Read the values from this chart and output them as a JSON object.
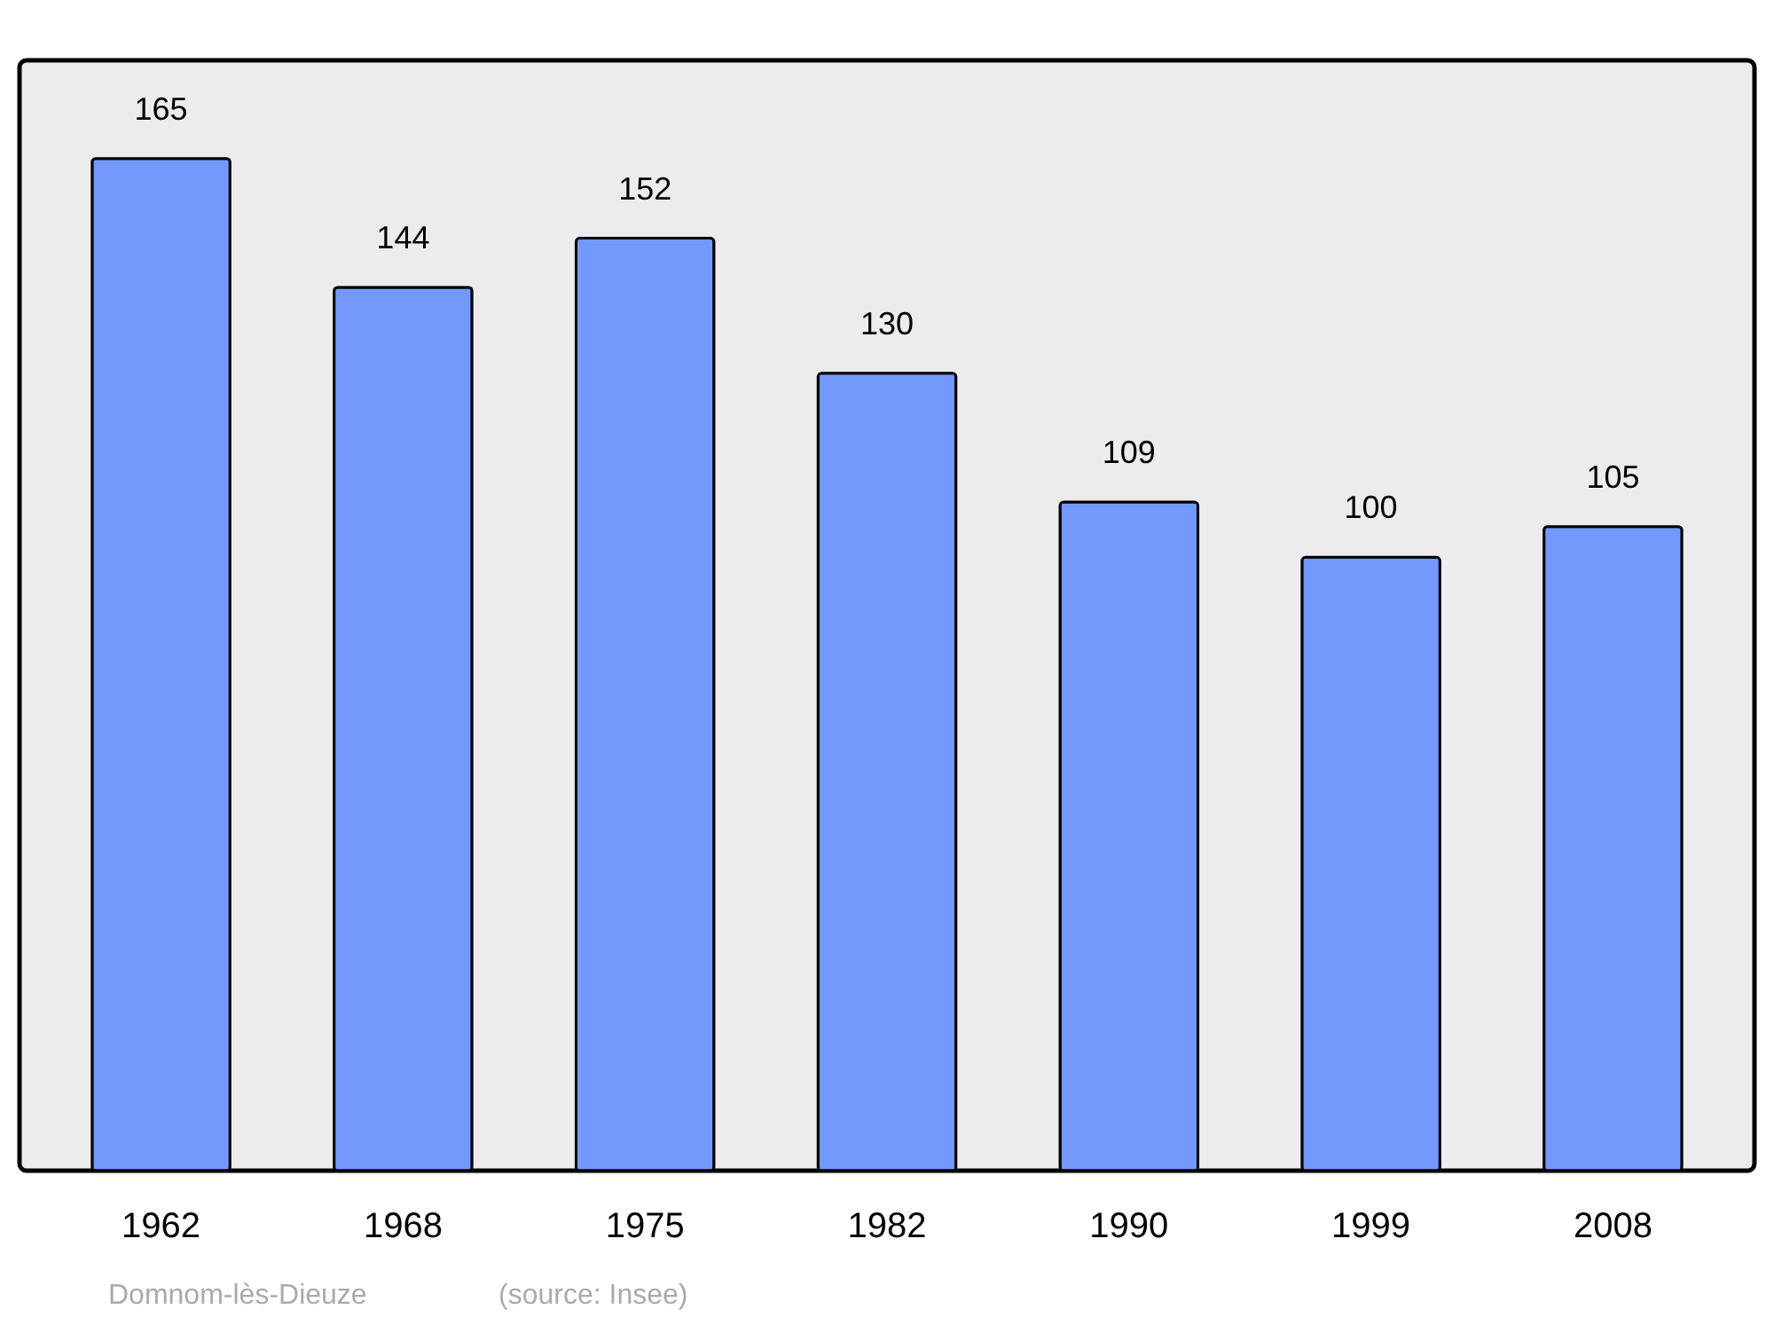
{
  "chart_data": {
    "type": "bar",
    "categories": [
      "1962",
      "1968",
      "1975",
      "1982",
      "1990",
      "1999",
      "2008"
    ],
    "values": [
      165,
      144,
      152,
      130,
      109,
      100,
      105
    ],
    "color": "#7399ff",
    "data_labels": true,
    "ylim": [
      0,
      181
    ],
    "annotations": [
      "Domnom-lès-Dieuze",
      "(source: Insee)"
    ]
  }
}
